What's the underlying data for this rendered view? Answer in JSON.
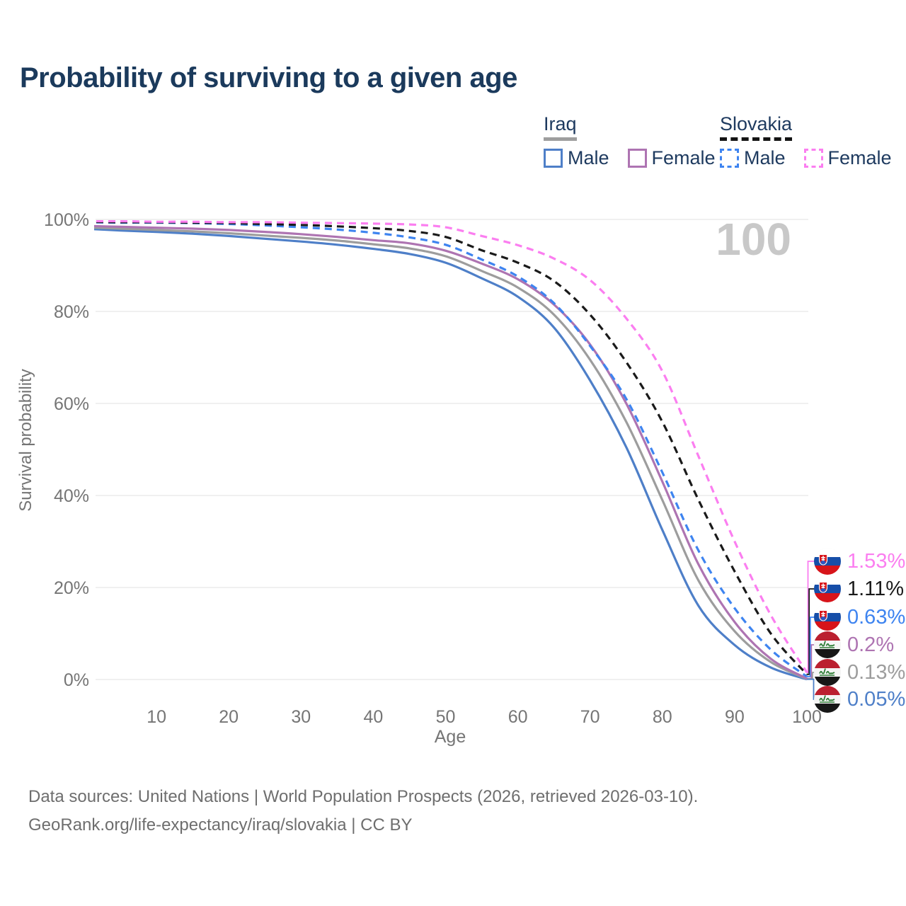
{
  "title": "Probability of surviving to a given age",
  "legend": {
    "groups": [
      {
        "country": "Iraq",
        "line_style": "solid",
        "items": [
          {
            "label": "Male",
            "color": "#4e7fc8"
          },
          {
            "label": "Female",
            "color": "#ae74b2"
          }
        ]
      },
      {
        "country": "Slovakia",
        "line_style": "dashed",
        "items": [
          {
            "label": "Male",
            "color": "#3e84f0"
          },
          {
            "label": "Female",
            "color": "#fb7ef0"
          }
        ]
      }
    ]
  },
  "hovered_age_watermark": "100",
  "chart_data": {
    "type": "line",
    "title": "Probability of surviving to a given age",
    "xlabel": "Age",
    "ylabel": "Survival probability",
    "xlim": [
      0,
      100
    ],
    "ylim": [
      0,
      100
    ],
    "grid": true,
    "x_ticks": [
      10,
      20,
      30,
      40,
      50,
      60,
      70,
      80,
      90,
      100
    ],
    "y_ticks": [
      0,
      20,
      40,
      60,
      80,
      100
    ],
    "y_tick_suffix": "%",
    "x": [
      0,
      5,
      10,
      15,
      20,
      25,
      30,
      35,
      40,
      45,
      50,
      55,
      60,
      65,
      70,
      75,
      80,
      85,
      90,
      95,
      100
    ],
    "series": [
      {
        "name": "Slovakia Female",
        "country": "Slovakia",
        "sex": "Female",
        "color": "#fb7ef0",
        "dash": true,
        "end_label": "1.53%",
        "values": [
          99.6,
          99.6,
          99.5,
          99.5,
          99.4,
          99.4,
          99.3,
          99.2,
          99.1,
          98.9,
          98.3,
          96.4,
          94.4,
          91.5,
          86.8,
          78.5,
          67.0,
          48.5,
          30.0,
          14.0,
          1.53
        ]
      },
      {
        "name": "Slovakia Both sexes",
        "country": "Slovakia",
        "sex": "Both",
        "color": "#1a1a1a",
        "dash": true,
        "end_label": "1.11%",
        "values": [
          99.5,
          99.4,
          99.4,
          99.3,
          99.2,
          99.0,
          98.8,
          98.5,
          98.1,
          97.5,
          96.2,
          93.3,
          90.6,
          86.6,
          79.3,
          69.0,
          56.0,
          39.0,
          23.5,
          10.0,
          1.11
        ]
      },
      {
        "name": "Slovakia Male",
        "country": "Slovakia",
        "sex": "Male",
        "color": "#3e84f0",
        "dash": true,
        "end_label": "0.63%",
        "values": [
          99.4,
          99.3,
          99.3,
          99.2,
          99.0,
          98.7,
          98.3,
          97.8,
          97.1,
          96.1,
          94.5,
          91.3,
          87.6,
          81.8,
          72.5,
          61.0,
          45.0,
          28.0,
          15.5,
          6.5,
          0.63
        ]
      },
      {
        "name": "Iraq Female",
        "country": "Iraq",
        "sex": "Female",
        "color": "#ae74b2",
        "dash": false,
        "end_label": "0.2%",
        "values": [
          98.6,
          98.4,
          98.2,
          98.0,
          97.7,
          97.3,
          96.8,
          96.2,
          95.5,
          94.8,
          93.2,
          90.4,
          87.0,
          81.5,
          72.8,
          60.0,
          43.0,
          25.0,
          12.5,
          4.5,
          0.2
        ]
      },
      {
        "name": "Iraq Both sexes",
        "country": "Iraq",
        "sex": "Both",
        "color": "#9d9d9d",
        "dash": false,
        "end_label": "0.13%",
        "values": [
          98.3,
          98.0,
          97.7,
          97.4,
          97.0,
          96.5,
          96.0,
          95.4,
          94.6,
          93.7,
          92.0,
          88.8,
          85.2,
          79.3,
          69.5,
          56.0,
          39.0,
          21.5,
          10.5,
          3.8,
          0.13
        ]
      },
      {
        "name": "Iraq Male",
        "country": "Iraq",
        "sex": "Male",
        "color": "#4e7fc8",
        "dash": false,
        "end_label": "0.05%",
        "values": [
          98.0,
          97.6,
          97.3,
          96.9,
          96.4,
          95.8,
          95.2,
          94.5,
          93.6,
          92.5,
          90.6,
          87.2,
          83.2,
          76.5,
          65.0,
          50.5,
          32.5,
          16.0,
          7.5,
          2.6,
          0.05
        ]
      }
    ],
    "legend_position": "top-right"
  },
  "footer": {
    "line1": "Data sources: United Nations | World Population Prospects (2026, retrieved 2026-03-10).",
    "line2": "GeoRank.org/life-expectancy/iraq/slovakia | CC BY"
  }
}
